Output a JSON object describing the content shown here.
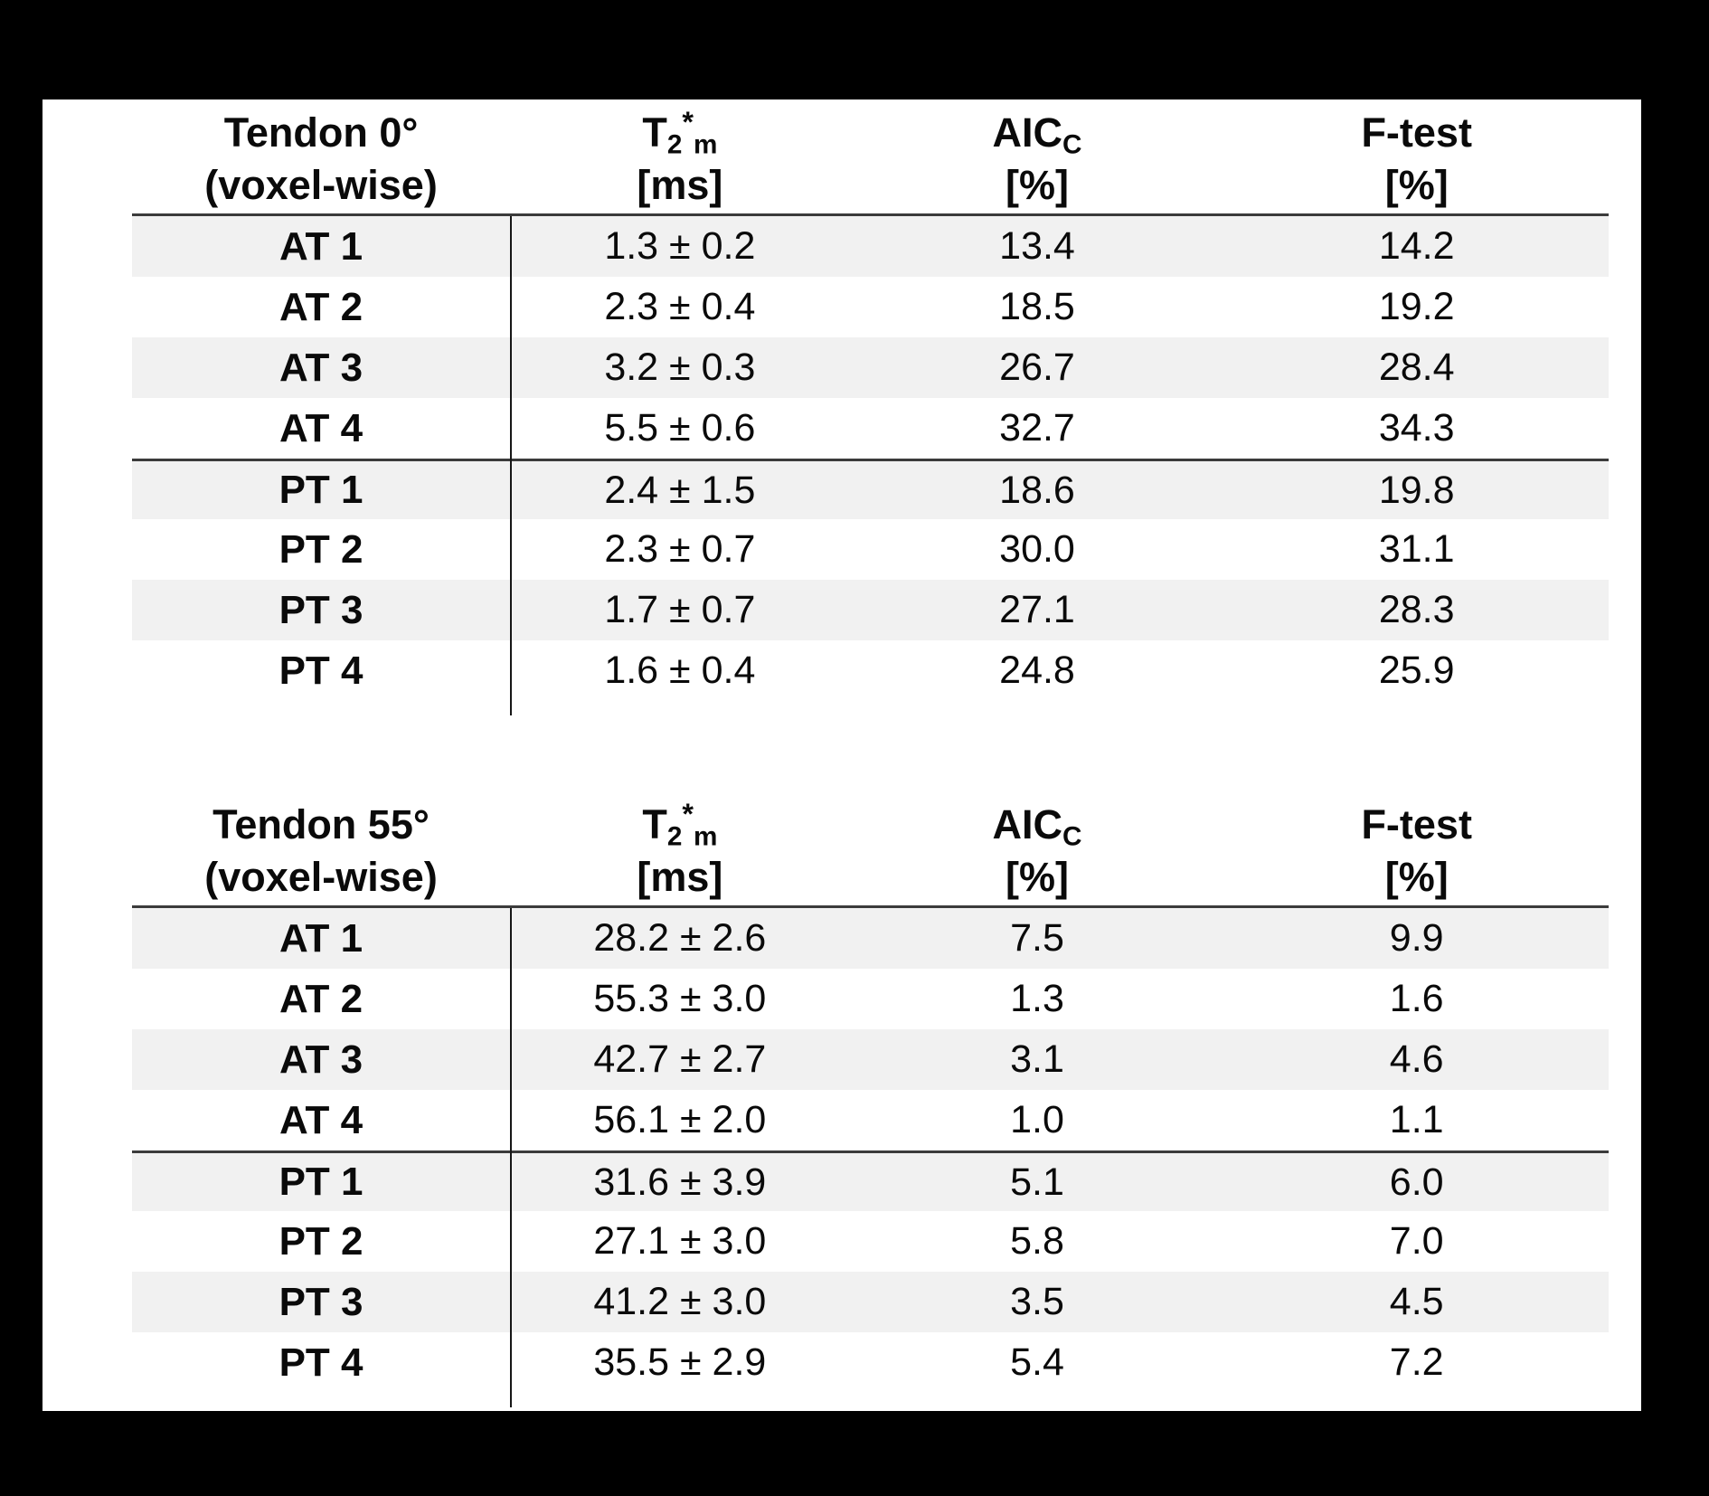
{
  "page": {
    "background_color": "#000000",
    "panel_color": "#ffffff",
    "stripe_color": "#f1f1f1",
    "rule_color": "#3b3b3b",
    "text_color": "#0a0a0a"
  },
  "tables": [
    {
      "header": {
        "col1_line1": "Tendon 0°",
        "col1_line2": "(voxel-wise)",
        "col2_main": {
          "base": "T",
          "sub_a": "2",
          "star": "*",
          "sub_b": "m"
        },
        "col2_unit": "[ms]",
        "col3_main": {
          "base": "AIC",
          "sub": "C"
        },
        "col3_unit": "[%]",
        "col4_main": "F-test",
        "col4_unit": "[%]"
      },
      "rows": [
        {
          "label": "AT 1",
          "t2m": "1.3 ± 0.2",
          "aicc": "13.4",
          "ftest": "14.2"
        },
        {
          "label": "AT 2",
          "t2m": "2.3 ± 0.4",
          "aicc": "18.5",
          "ftest": "19.2"
        },
        {
          "label": "AT 3",
          "t2m": "3.2 ± 0.3",
          "aicc": "26.7",
          "ftest": "28.4"
        },
        {
          "label": "AT 4",
          "t2m": "5.5 ± 0.6",
          "aicc": "32.7",
          "ftest": "34.3"
        },
        {
          "label": "PT 1",
          "t2m": "2.4 ± 1.5",
          "aicc": "18.6",
          "ftest": "19.8"
        },
        {
          "label": "PT 2",
          "t2m": "2.3 ± 0.7",
          "aicc": "30.0",
          "ftest": "31.1"
        },
        {
          "label": "PT 3",
          "t2m": "1.7 ± 0.7",
          "aicc": "27.1",
          "ftest": "28.3"
        },
        {
          "label": "PT 4",
          "t2m": "1.6 ± 0.4",
          "aicc": "24.8",
          "ftest": "25.9"
        }
      ]
    },
    {
      "header": {
        "col1_line1": "Tendon 55°",
        "col1_line2": "(voxel-wise)",
        "col2_main": {
          "base": "T",
          "sub_a": "2",
          "star": "*",
          "sub_b": "m"
        },
        "col2_unit": "[ms]",
        "col3_main": {
          "base": "AIC",
          "sub": "C"
        },
        "col3_unit": "[%]",
        "col4_main": "F-test",
        "col4_unit": "[%]"
      },
      "rows": [
        {
          "label": "AT 1",
          "t2m": "28.2 ± 2.6",
          "aicc": "7.5",
          "ftest": "9.9"
        },
        {
          "label": "AT 2",
          "t2m": "55.3 ± 3.0",
          "aicc": "1.3",
          "ftest": "1.6"
        },
        {
          "label": "AT 3",
          "t2m": "42.7 ± 2.7",
          "aicc": "3.1",
          "ftest": "4.6"
        },
        {
          "label": "AT 4",
          "t2m": "56.1 ± 2.0",
          "aicc": "1.0",
          "ftest": "1.1"
        },
        {
          "label": "PT 1",
          "t2m": "31.6 ± 3.9",
          "aicc": "5.1",
          "ftest": "6.0"
        },
        {
          "label": "PT 2",
          "t2m": "27.1 ± 3.0",
          "aicc": "5.8",
          "ftest": "7.0"
        },
        {
          "label": "PT 3",
          "t2m": "41.2 ± 3.0",
          "aicc": "3.5",
          "ftest": "4.5"
        },
        {
          "label": "PT 4",
          "t2m": "35.5 ± 2.9",
          "aicc": "5.4",
          "ftest": "7.2"
        }
      ]
    }
  ]
}
